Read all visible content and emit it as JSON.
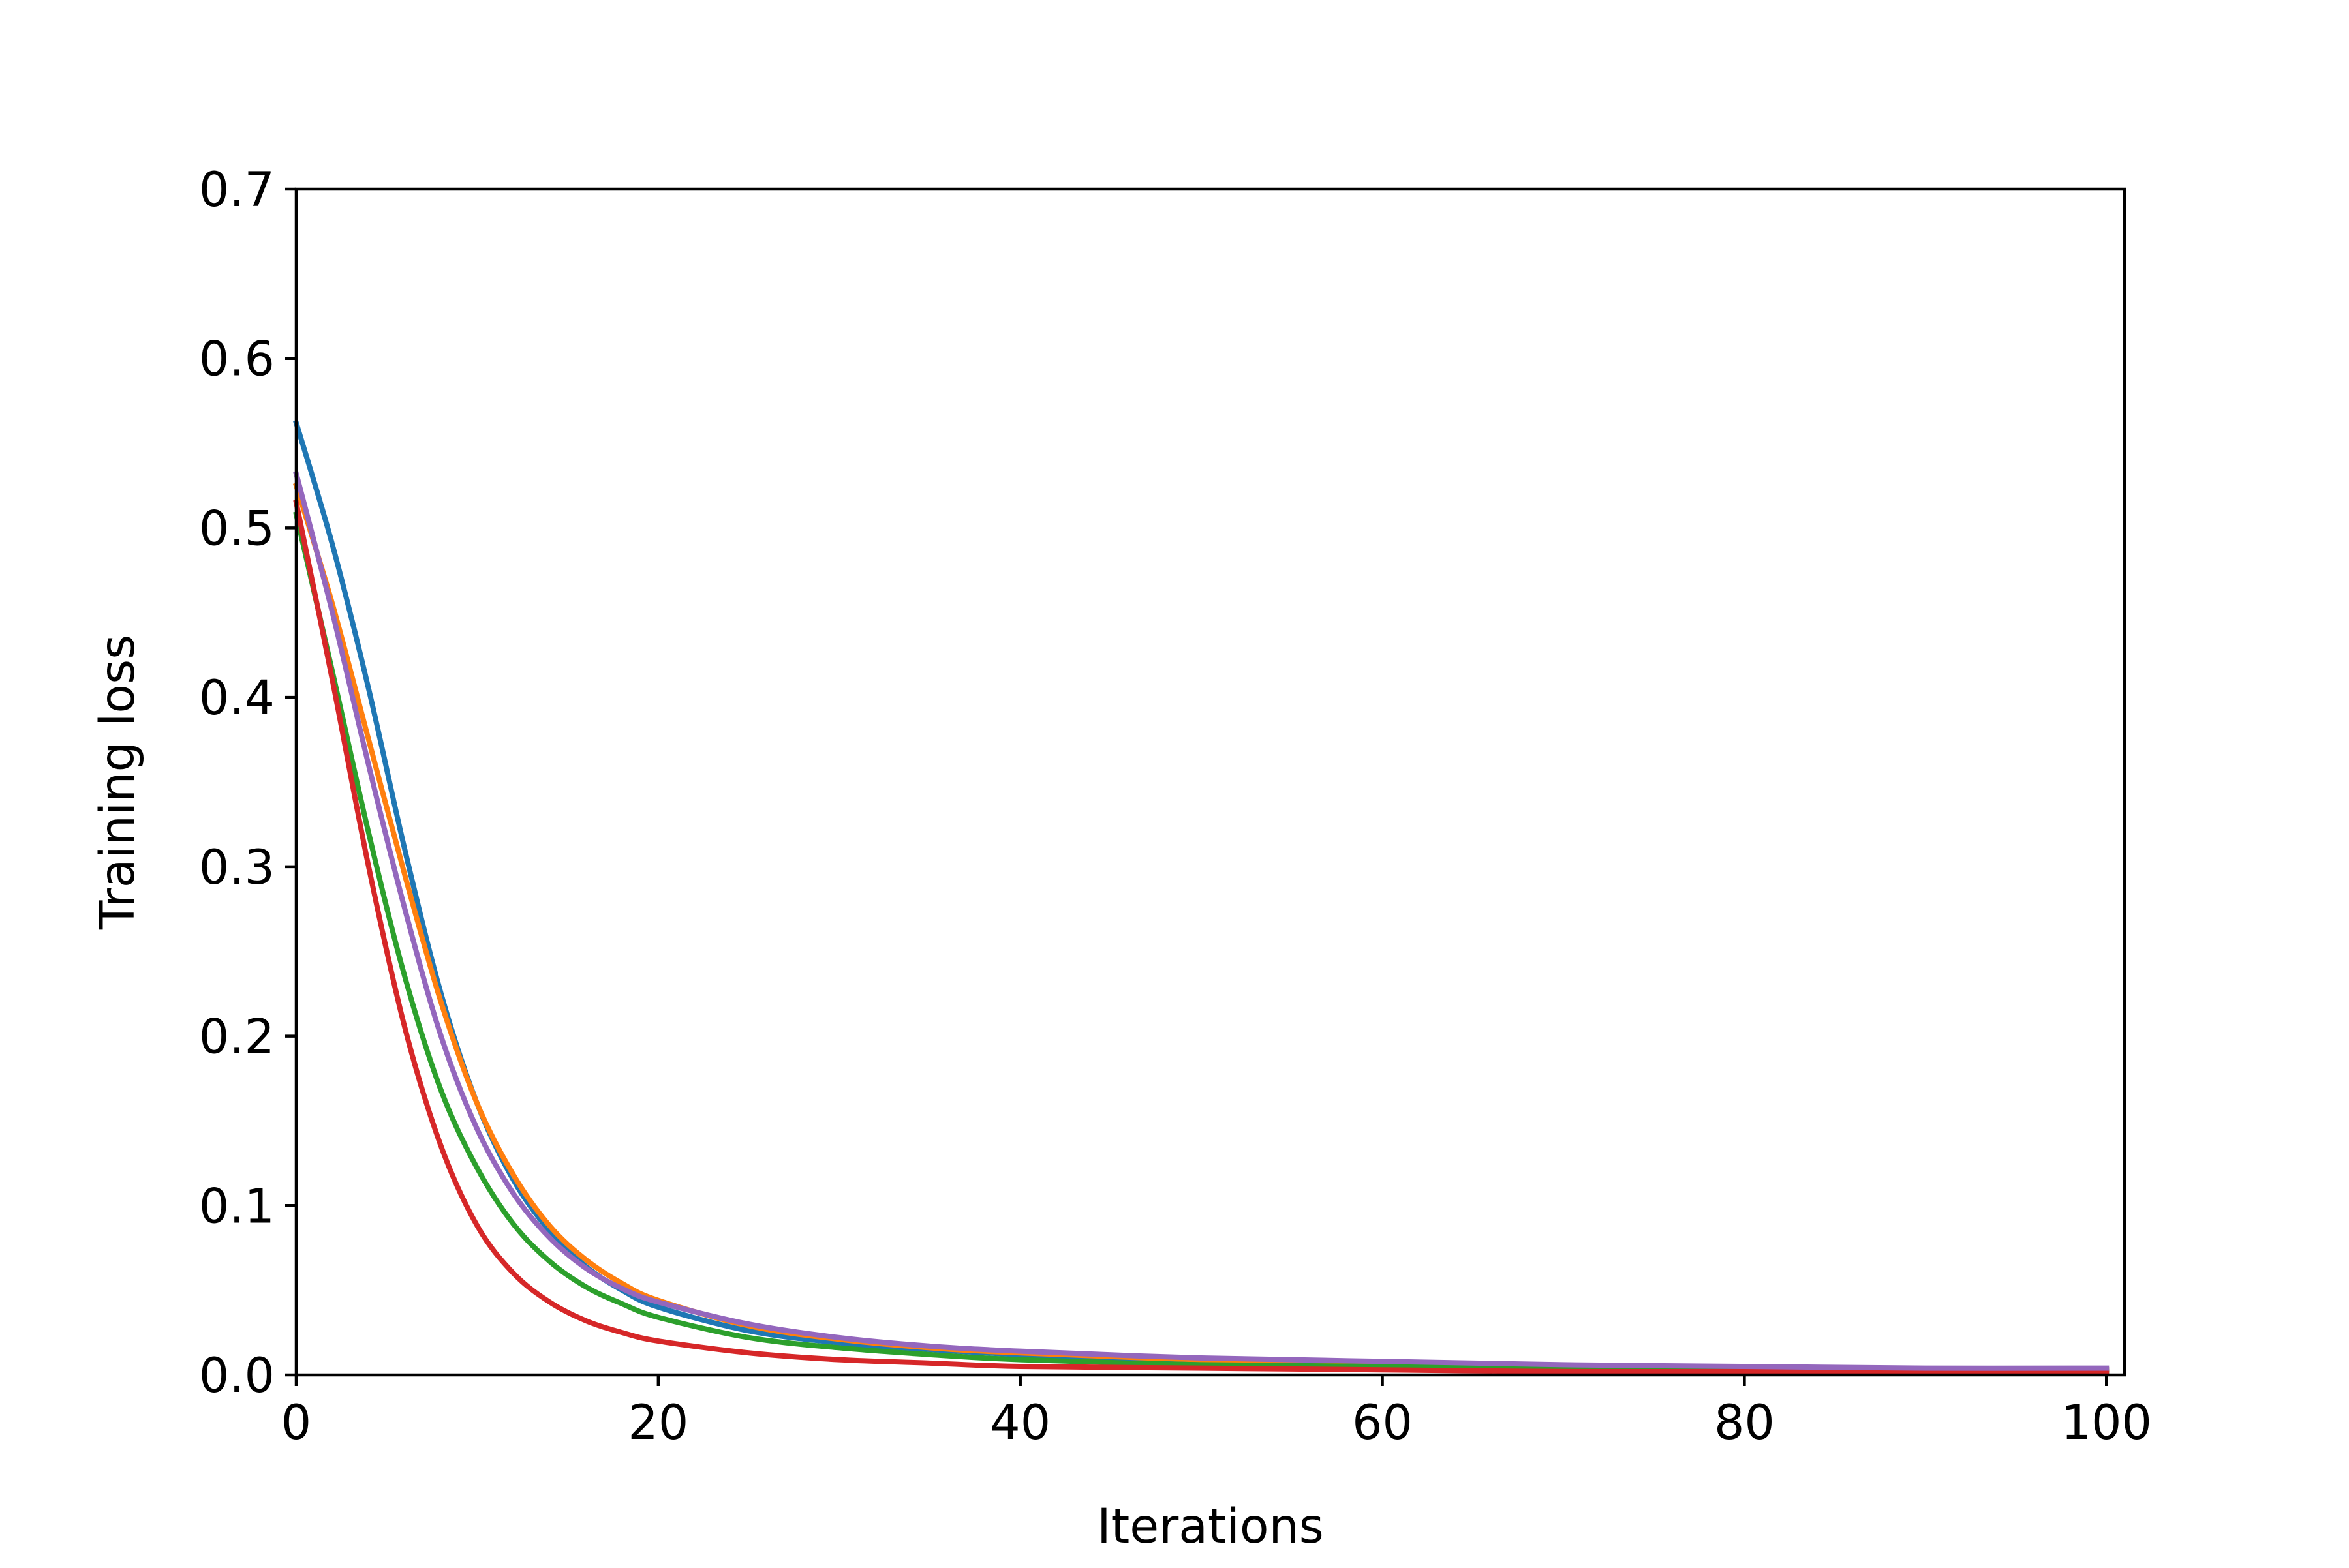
{
  "chart_data": {
    "type": "line",
    "title": "",
    "xlabel": "Iterations",
    "ylabel": "Training loss",
    "xlim": [
      0,
      101
    ],
    "ylim": [
      0,
      0.7
    ],
    "xticks": [
      0,
      20,
      40,
      60,
      80,
      100
    ],
    "xtick_labels": [
      "0",
      "20",
      "40",
      "60",
      "80",
      "100"
    ],
    "yticks": [
      0,
      0.1,
      0.2,
      0.3,
      0.4,
      0.5,
      0.6,
      0.7
    ],
    "ytick_labels": [
      "0.0",
      "0.1",
      "0.2",
      "0.3",
      "0.4",
      "0.5",
      "0.6",
      "0.7"
    ],
    "grid": false,
    "legend": "none",
    "x": [
      0,
      2,
      4,
      6,
      8,
      10,
      12,
      14,
      16,
      18,
      20,
      25,
      30,
      35,
      40,
      50,
      60,
      70,
      80,
      90,
      100
    ],
    "series": [
      {
        "color": "#1f77b4",
        "values": [
          0.562,
          0.49,
          0.405,
          0.31,
          0.225,
          0.16,
          0.115,
          0.085,
          0.064,
          0.05,
          0.04,
          0.026,
          0.019,
          0.015,
          0.012,
          0.008,
          0.006,
          0.005,
          0.004,
          0.003,
          0.003
        ]
      },
      {
        "color": "#ff7f0e",
        "values": [
          0.525,
          0.455,
          0.375,
          0.295,
          0.22,
          0.16,
          0.118,
          0.088,
          0.068,
          0.054,
          0.044,
          0.029,
          0.021,
          0.016,
          0.013,
          0.009,
          0.007,
          0.005,
          0.004,
          0.003,
          0.003
        ]
      },
      {
        "color": "#2ca02c",
        "values": [
          0.508,
          0.415,
          0.32,
          0.235,
          0.168,
          0.122,
          0.089,
          0.067,
          0.052,
          0.042,
          0.034,
          0.022,
          0.016,
          0.012,
          0.009,
          0.006,
          0.005,
          0.004,
          0.003,
          0.003,
          0.002
        ]
      },
      {
        "color": "#d62728",
        "values": [
          0.515,
          0.41,
          0.3,
          0.205,
          0.135,
          0.088,
          0.06,
          0.043,
          0.032,
          0.025,
          0.02,
          0.013,
          0.009,
          0.007,
          0.005,
          0.004,
          0.003,
          0.002,
          0.002,
          0.002,
          0.001
        ]
      },
      {
        "color": "#9467bd",
        "values": [
          0.532,
          0.45,
          0.36,
          0.275,
          0.2,
          0.145,
          0.107,
          0.081,
          0.063,
          0.051,
          0.043,
          0.03,
          0.022,
          0.017,
          0.014,
          0.01,
          0.008,
          0.006,
          0.005,
          0.004,
          0.004
        ]
      }
    ]
  }
}
